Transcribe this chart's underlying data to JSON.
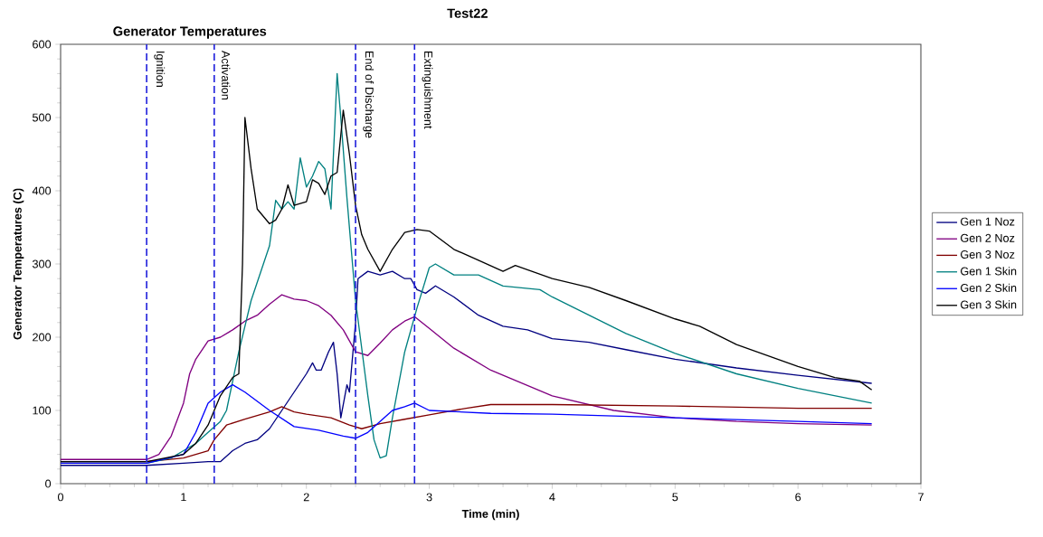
{
  "chart_data": {
    "type": "line",
    "title": "Test22",
    "subtitle": "Generator Temperatures",
    "xlabel": "Time (min)",
    "ylabel": "Generator Temperatures (C)",
    "xlim": [
      0,
      7
    ],
    "xticks": [
      0,
      1,
      2,
      3,
      4,
      5,
      6,
      7
    ],
    "ylim": [
      0,
      600
    ],
    "yticks": [
      0,
      100,
      200,
      300,
      400,
      500,
      600
    ],
    "legend": "right",
    "ref_lines": [
      {
        "axis": "x",
        "value": 0.7,
        "label": "Ignition",
        "color": "#1f1fdc",
        "line_style": "dashed"
      },
      {
        "axis": "x",
        "value": 1.25,
        "label": "Activation",
        "color": "#1f1fdc",
        "line_style": "dashed"
      },
      {
        "axis": "x",
        "value": 2.4,
        "label": "End of Discharge",
        "color": "#1f1fdc",
        "line_style": "dashed"
      },
      {
        "axis": "x",
        "value": 2.88,
        "label": "Extinguishment",
        "color": "#1f1fdc",
        "line_style": "dashed"
      }
    ],
    "series": [
      {
        "name": "Gen 1 Noz",
        "color": "#000080",
        "x": [
          0,
          0.7,
          1.0,
          1.2,
          1.3,
          1.4,
          1.5,
          1.6,
          1.7,
          1.8,
          1.9,
          2.0,
          2.05,
          2.08,
          2.12,
          2.18,
          2.22,
          2.25,
          2.28,
          2.33,
          2.35,
          2.4,
          2.42,
          2.5,
          2.6,
          2.7,
          2.8,
          2.85,
          2.9,
          2.97,
          3.05,
          3.2,
          3.4,
          3.6,
          3.8,
          4.0,
          4.3,
          4.6,
          5.0,
          5.5,
          6.0,
          6.6
        ],
        "values": [
          25,
          25,
          28,
          30,
          30,
          45,
          55,
          60,
          75,
          100,
          125,
          150,
          165,
          155,
          155,
          180,
          193,
          150,
          90,
          135,
          125,
          220,
          280,
          290,
          285,
          290,
          280,
          280,
          265,
          260,
          270,
          255,
          230,
          215,
          210,
          198,
          193,
          183,
          170,
          158,
          148,
          137
        ]
      },
      {
        "name": "Gen 2 Noz",
        "color": "#800080",
        "x": [
          0,
          0.7,
          0.8,
          0.9,
          1.0,
          1.05,
          1.1,
          1.2,
          1.3,
          1.4,
          1.5,
          1.6,
          1.7,
          1.8,
          1.9,
          2.0,
          2.1,
          2.2,
          2.3,
          2.4,
          2.5,
          2.6,
          2.7,
          2.8,
          2.88,
          3.0,
          3.2,
          3.5,
          4.0,
          4.5,
          5.0,
          5.5,
          6.0,
          6.6
        ],
        "values": [
          33,
          33,
          40,
          65,
          110,
          150,
          170,
          195,
          200,
          210,
          222,
          230,
          245,
          258,
          252,
          250,
          243,
          230,
          210,
          180,
          175,
          192,
          210,
          222,
          228,
          212,
          185,
          155,
          120,
          100,
          90,
          85,
          82,
          80
        ]
      },
      {
        "name": "Gen 3 Noz",
        "color": "#800000",
        "x": [
          0,
          0.7,
          1.0,
          1.2,
          1.25,
          1.35,
          1.5,
          1.7,
          1.8,
          1.9,
          2.0,
          2.2,
          2.35,
          2.45,
          2.6,
          2.8,
          3.0,
          3.3,
          3.5,
          4.0,
          5.0,
          6.0,
          6.6
        ],
        "values": [
          30,
          30,
          35,
          45,
          60,
          80,
          88,
          98,
          105,
          98,
          95,
          90,
          80,
          75,
          82,
          88,
          94,
          103,
          108,
          108,
          106,
          103,
          103
        ]
      },
      {
        "name": "Gen 1 Skin",
        "color": "#008080",
        "x": [
          0,
          0.7,
          0.9,
          1.0,
          1.1,
          1.2,
          1.3,
          1.35,
          1.45,
          1.55,
          1.65,
          1.7,
          1.75,
          1.8,
          1.85,
          1.9,
          1.95,
          2.0,
          2.05,
          2.1,
          2.15,
          2.2,
          2.25,
          2.28,
          2.33,
          2.4,
          2.5,
          2.55,
          2.6,
          2.65,
          2.7,
          2.8,
          2.9,
          3.0,
          3.05,
          3.2,
          3.3,
          3.4,
          3.6,
          3.9,
          4.0,
          4.3,
          4.6,
          5.0,
          5.5,
          6.0,
          6.6
        ],
        "values": [
          28,
          28,
          35,
          45,
          55,
          70,
          85,
          100,
          180,
          250,
          300,
          325,
          387,
          375,
          385,
          375,
          445,
          405,
          420,
          440,
          430,
          375,
          560,
          500,
          390,
          250,
          120,
          60,
          35,
          38,
          90,
          180,
          240,
          295,
          300,
          285,
          285,
          285,
          270,
          265,
          255,
          230,
          205,
          178,
          150,
          130,
          110
        ]
      },
      {
        "name": "Gen 2 Skin",
        "color": "#0000ff",
        "x": [
          0,
          0.7,
          1.0,
          1.1,
          1.2,
          1.3,
          1.4,
          1.5,
          1.7,
          1.9,
          2.1,
          2.3,
          2.4,
          2.5,
          2.7,
          2.8,
          2.88,
          3.0,
          3.5,
          4.0,
          5.0,
          6.0,
          6.6
        ],
        "values": [
          28,
          28,
          40,
          70,
          110,
          125,
          135,
          125,
          100,
          78,
          73,
          65,
          62,
          70,
          100,
          105,
          110,
          100,
          96,
          95,
          90,
          85,
          82
        ]
      },
      {
        "name": "Gen 3 Skin",
        "color": "#000000",
        "x": [
          0,
          0.7,
          1.0,
          1.1,
          1.2,
          1.3,
          1.4,
          1.45,
          1.48,
          1.5,
          1.55,
          1.6,
          1.7,
          1.75,
          1.8,
          1.85,
          1.9,
          2.0,
          2.05,
          2.1,
          2.15,
          2.2,
          2.25,
          2.3,
          2.35,
          2.4,
          2.45,
          2.5,
          2.6,
          2.7,
          2.8,
          2.9,
          3.0,
          3.2,
          3.4,
          3.6,
          3.7,
          4.0,
          4.3,
          4.6,
          5.0,
          5.2,
          5.5,
          6.0,
          6.3,
          6.5,
          6.6
        ],
        "values": [
          30,
          30,
          40,
          55,
          80,
          120,
          145,
          150,
          300,
          500,
          430,
          375,
          355,
          360,
          375,
          408,
          380,
          385,
          415,
          410,
          395,
          420,
          425,
          510,
          450,
          380,
          340,
          320,
          290,
          320,
          343,
          347,
          345,
          320,
          305,
          290,
          298,
          280,
          268,
          250,
          225,
          215,
          190,
          160,
          145,
          140,
          128
        ]
      }
    ]
  }
}
